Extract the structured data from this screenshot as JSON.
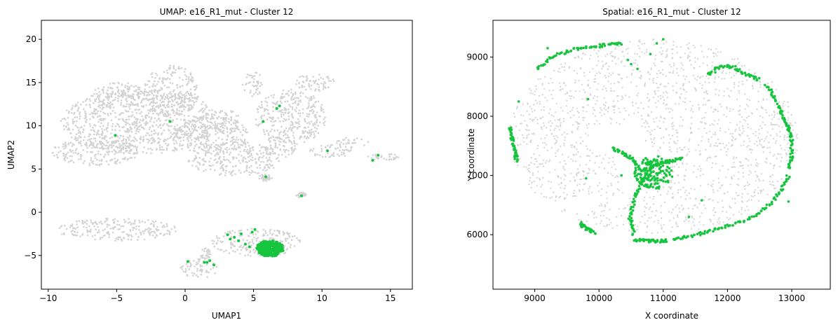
{
  "colors": {
    "background_points": "#d3d3d3",
    "cluster_points": "#16c43e",
    "axis": "#000000"
  },
  "chart_data": [
    {
      "type": "scatter",
      "title": "UMAP: e16_R1_mut - Cluster 12",
      "xlabel": "UMAP1",
      "ylabel": "UMAP2",
      "xlim": [
        -10.5,
        16.6
      ],
      "ylim": [
        -8.9,
        22.2
      ],
      "xticks": [
        -10,
        -5,
        0,
        5,
        10,
        15
      ],
      "yticks": [
        -5,
        0,
        5,
        10,
        15,
        20
      ],
      "legend": "none",
      "grid": false,
      "background_regions": [
        {
          "cx": -3.3,
          "cy": 10.5,
          "rx": 5.8,
          "ry": 3.8
        },
        {
          "cx": -6.5,
          "cy": 7.0,
          "rx": 3.2,
          "ry": 1.6
        },
        {
          "cx": -1.0,
          "cy": 14.0,
          "rx": 2.0,
          "ry": 3.0
        },
        {
          "cx": -4.8,
          "cy": 13.5,
          "rx": 2.0,
          "ry": 1.5
        },
        {
          "cx": 1.9,
          "cy": 8.9,
          "rx": 2.8,
          "ry": 2.2
        },
        {
          "cx": 3.6,
          "cy": 6.2,
          "rx": 3.4,
          "ry": 2.0
        },
        {
          "cx": 3.0,
          "cy": 10.5,
          "rx": 1.0,
          "ry": 1.5
        },
        {
          "cx": 5.0,
          "cy": 14.8,
          "rx": 0.8,
          "ry": 1.4
        },
        {
          "cx": 7.7,
          "cy": 11.0,
          "rx": 2.6,
          "ry": 3.2
        },
        {
          "cx": 7.0,
          "cy": 7.6,
          "rx": 1.2,
          "ry": 1.3
        },
        {
          "cx": 9.5,
          "cy": 15.0,
          "rx": 1.4,
          "ry": 1.1
        },
        {
          "cx": 10.7,
          "cy": 7.1,
          "rx": 1.6,
          "ry": 0.8
        },
        {
          "cx": 12.2,
          "cy": 8.1,
          "rx": 1.2,
          "ry": 0.6
        },
        {
          "cx": 14.5,
          "cy": 6.4,
          "rx": 1.2,
          "ry": 0.4
        },
        {
          "cx": 8.5,
          "cy": 2.0,
          "rx": 0.4,
          "ry": 0.3
        },
        {
          "cx": 5.9,
          "cy": 4.0,
          "rx": 0.5,
          "ry": 0.4
        },
        {
          "cx": -5.0,
          "cy": -2.0,
          "rx": 4.4,
          "ry": 1.3
        },
        {
          "cx": 5.2,
          "cy": -3.5,
          "rx": 3.3,
          "ry": 1.6
        },
        {
          "cx": 1.0,
          "cy": -6.5,
          "rx": 1.4,
          "ry": 1.1
        },
        {
          "cx": 1.5,
          "cy": -4.8,
          "rx": 0.4,
          "ry": 0.7
        }
      ],
      "series": [
        {
          "values_x": [
            -5.1,
            -1.1,
            5.7,
            6.7,
            6.9,
            10.4,
            13.7,
            14.1,
            5.9,
            8.5,
            3.1,
            3.6,
            3.9,
            4.4,
            4.7,
            4.9,
            5.1,
            3.3,
            4.1,
            0.2,
            1.4,
            1.8,
            2.1,
            1.6
          ],
          "values_y": [
            8.9,
            10.5,
            10.5,
            12.0,
            12.3,
            7.1,
            6.0,
            6.6,
            4.1,
            1.9,
            -2.6,
            -2.9,
            -3.3,
            -3.7,
            -4.0,
            -2.3,
            -2.0,
            -3.1,
            -2.5,
            -5.7,
            -5.8,
            -5.6,
            -6.1,
            -5.8
          ]
        }
      ],
      "dense_region": {
        "cx": 6.2,
        "cy": -4.2,
        "rx": 1.0,
        "ry": 0.9
      }
    },
    {
      "type": "scatter",
      "title": "Spatial: e16_R1_mut - Cluster 12",
      "xlabel": "X coordinate",
      "ylabel": "Y coordinate",
      "xlim": [
        8350,
        13600
      ],
      "ylim": [
        5080,
        9620
      ],
      "xticks": [
        9000,
        10000,
        11000,
        12000,
        13000
      ],
      "yticks": [
        6000,
        7000,
        8000,
        9000
      ],
      "legend": "none",
      "grid": false,
      "tissue_region": {
        "cx": 10850,
        "cy": 7650,
        "rx": 2250,
        "ry": 1650
      },
      "tissue_gaps": [
        {
          "cx": 10500,
          "cy": 7350,
          "rx": 220,
          "ry": 650
        },
        {
          "cx": 10100,
          "cy": 7600,
          "rx": 250,
          "ry": 250
        },
        {
          "cx": 9700,
          "cy": 6500,
          "rx": 250,
          "ry": 150
        }
      ],
      "cluster_arcs": [
        {
          "x": [
            9050,
            9300,
            9600,
            9900,
            10150,
            10350
          ],
          "y": [
            8800,
            9020,
            9130,
            9180,
            9210,
            9220
          ]
        },
        {
          "x": [
            11700,
            11900,
            12100,
            12300,
            12500
          ],
          "y": [
            8700,
            8850,
            8820,
            8700,
            8620
          ]
        },
        {
          "x": [
            12600,
            12750,
            12850,
            12950,
            13000,
            13000,
            12950
          ],
          "y": [
            8520,
            8300,
            8000,
            7800,
            7600,
            7300,
            7100
          ]
        },
        {
          "x": [
            12950,
            12800,
            12600,
            12300,
            12000,
            11700,
            11400,
            11150
          ],
          "y": [
            7000,
            6700,
            6450,
            6250,
            6150,
            6050,
            5970,
            5920
          ]
        },
        {
          "x": [
            11050,
            10900,
            10700,
            10550
          ],
          "y": [
            5900,
            5890,
            5900,
            5920
          ]
        },
        {
          "x": [
            10550,
            10480,
            10550,
            10680,
            10820
          ],
          "y": [
            6000,
            6300,
            6600,
            6900,
            7150
          ]
        },
        {
          "x": [
            10820,
            10950,
            11100,
            11300
          ],
          "y": [
            7150,
            7200,
            7250,
            7280
          ]
        },
        {
          "x": [
            10650,
            10520,
            10350,
            10200
          ],
          "y": [
            7100,
            7280,
            7400,
            7450
          ]
        },
        {
          "x": [
            9700,
            9800,
            9950
          ],
          "y": [
            6200,
            6100,
            6030
          ]
        },
        {
          "x": [
            8620,
            8650,
            8700,
            8720
          ],
          "y": [
            7800,
            7600,
            7400,
            7250
          ]
        }
      ],
      "series": [
        {
          "values_x": [
            9830,
            10450,
            10500,
            10600,
            10800,
            10900,
            11000,
            11600,
            12950,
            11400,
            9800,
            10350,
            9200,
            8750,
            9050
          ],
          "values_y": [
            8290,
            8950,
            8880,
            8800,
            9050,
            9230,
            9300,
            6580,
            6560,
            6300,
            6950,
            7000,
            9150,
            8250,
            8800
          ]
        }
      ],
      "dense_region": {
        "cx": 10850,
        "cy": 7050,
        "rx": 300,
        "ry": 280
      }
    }
  ]
}
